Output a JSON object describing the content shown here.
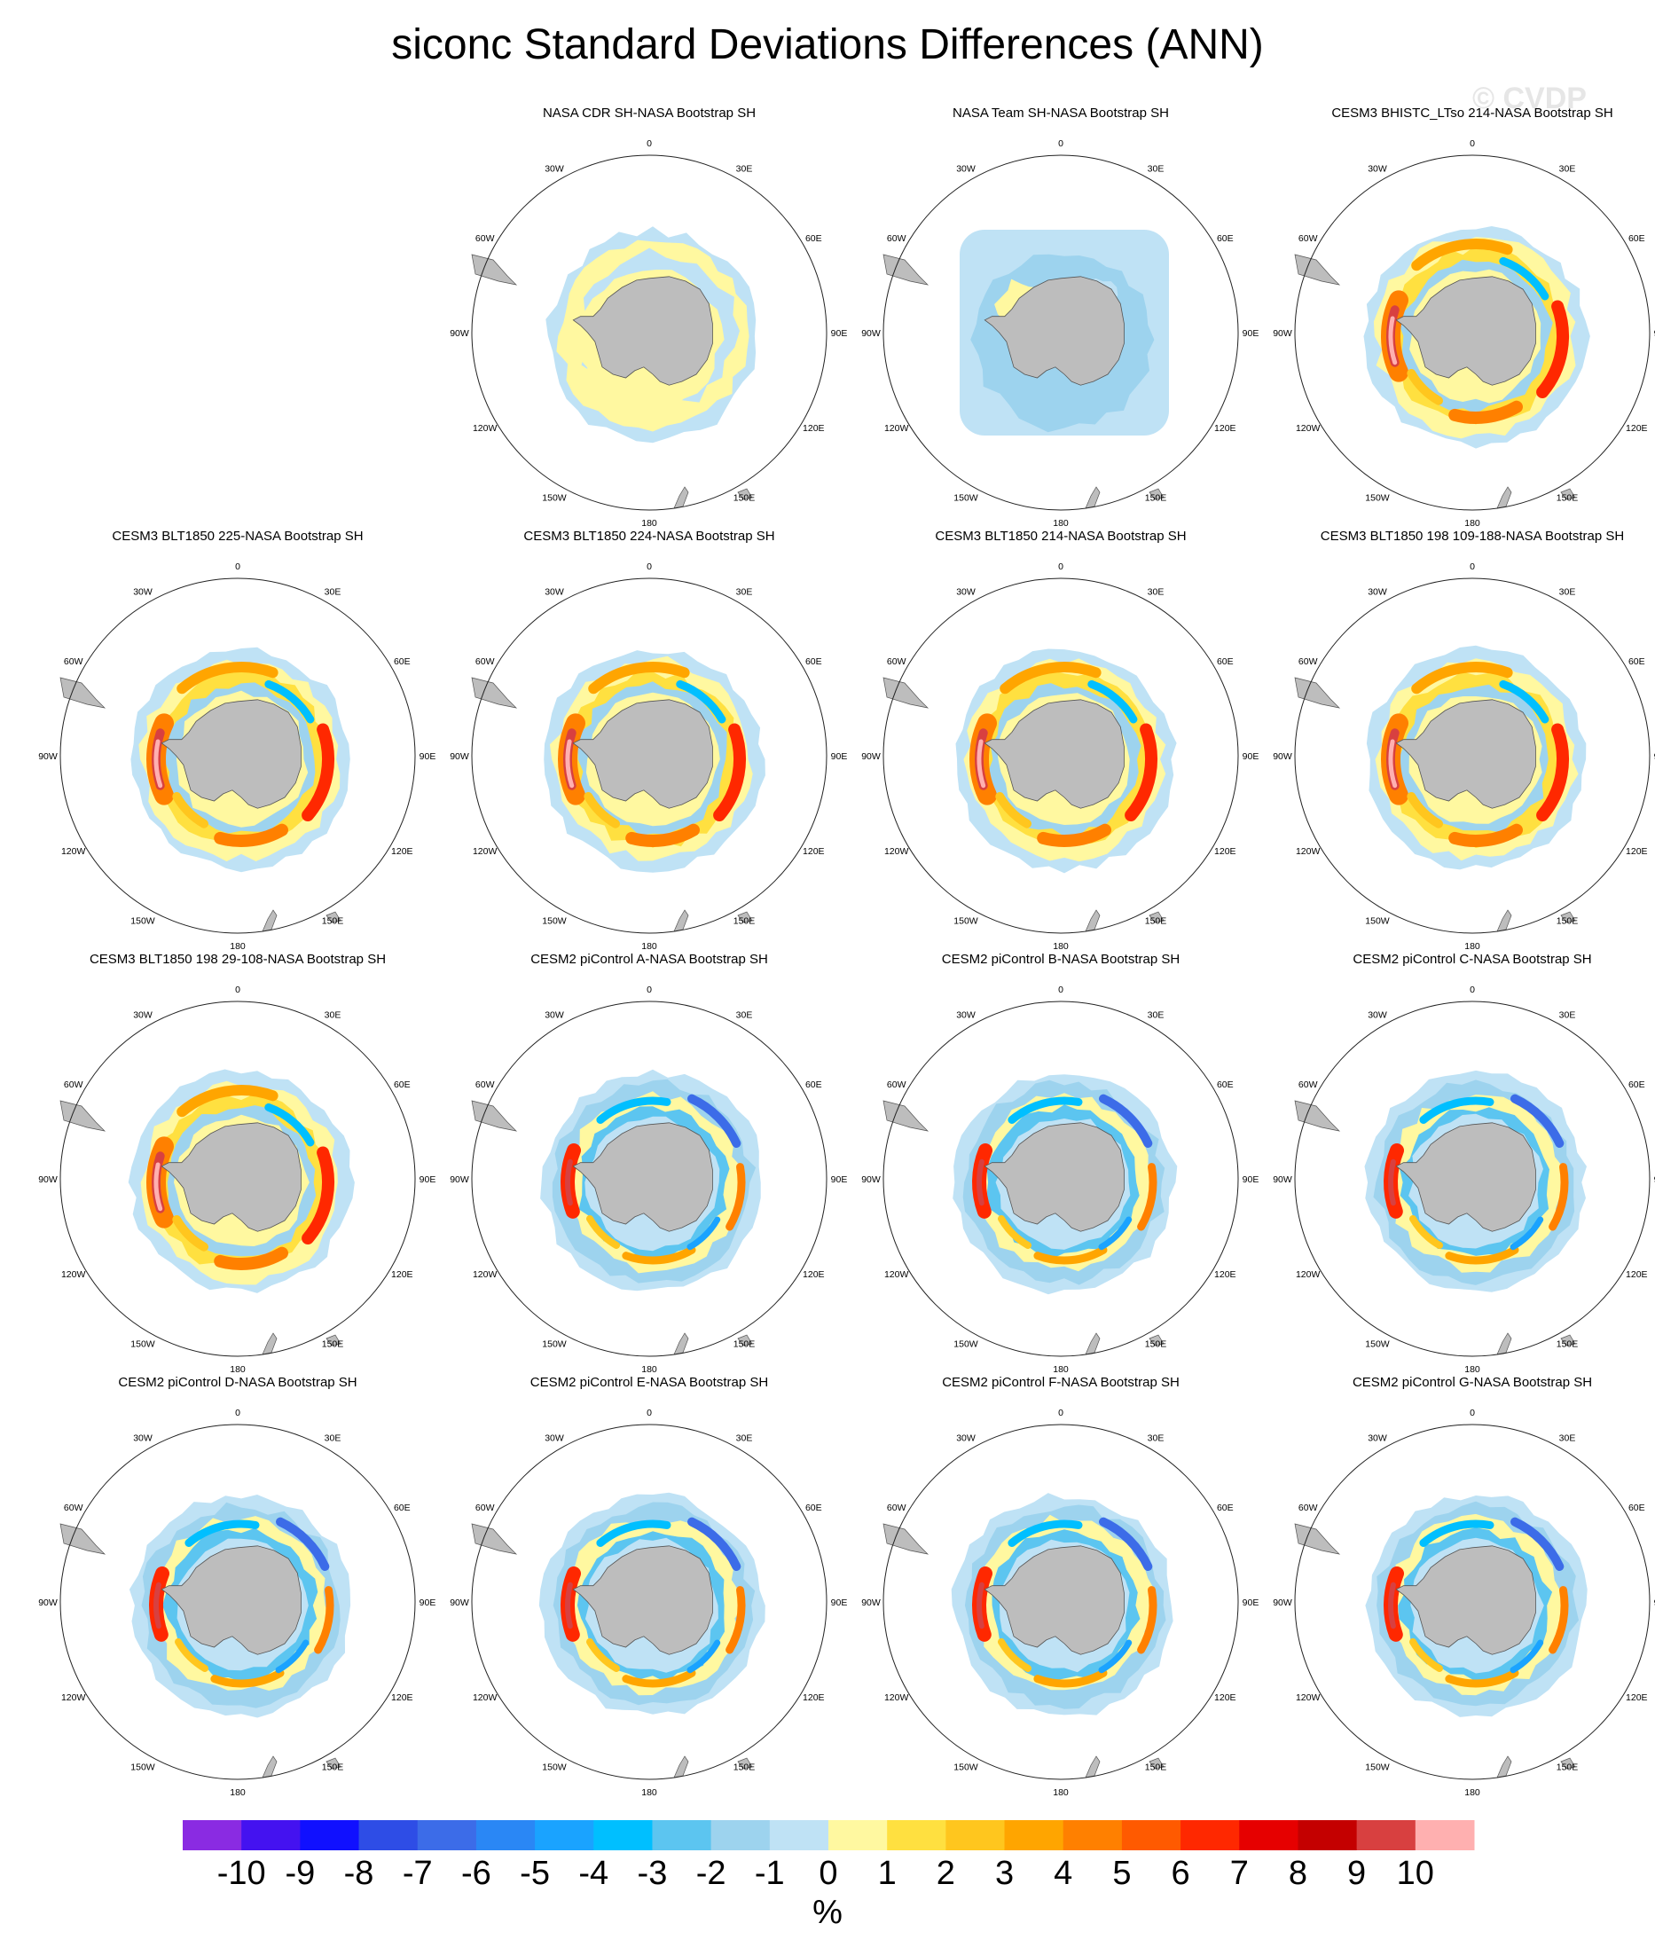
{
  "title": "siconc Standard Deviations Differences (ANN)",
  "watermark": "© CVDP",
  "lon_labels": [
    "0",
    "30E",
    "60E",
    "90E",
    "120E",
    "150E",
    "180",
    "150W",
    "120W",
    "90W",
    "60W",
    "30W"
  ],
  "chart_data": {
    "type": "heatmap",
    "projection": "south polar stereographic",
    "variable": "siconc",
    "statistic": "standard deviation difference",
    "season": "ANN",
    "units": "%",
    "colorbar": {
      "levels": [
        -10,
        -9,
        -8,
        -7,
        -6,
        -5,
        -4,
        -3,
        -2,
        -1,
        0,
        1,
        2,
        3,
        4,
        5,
        6,
        7,
        8,
        9,
        10
      ],
      "tick_labels": [
        "-10",
        "-9",
        "-8",
        "-7",
        "-6",
        "-5",
        "-4",
        "-3",
        "-2",
        "-1",
        "0",
        "1",
        "2",
        "3",
        "4",
        "5",
        "6",
        "7",
        "8",
        "9",
        "10"
      ],
      "colors": [
        "#8a2be2",
        "#4412f0",
        "#1010ff",
        "#2e4de6",
        "#3c6ce8",
        "#2a87f5",
        "#1aa3ff",
        "#00bfff",
        "#5cc5f0",
        "#9dd3ee",
        "#bfe2f5",
        "#fff8a0",
        "#ffe040",
        "#ffc61e",
        "#ffa500",
        "#ff8000",
        "#ff5a00",
        "#ff2800",
        "#e60000",
        "#c40000",
        "#d84040",
        "#ffb0b0"
      ],
      "unit_label": "%"
    },
    "panels": [
      {
        "title": "NASA CDR SH-NASA Bootstrap SH",
        "pattern": "obs1"
      },
      {
        "title": "NASA Team SH-NASA Bootstrap SH",
        "pattern": "obs2"
      },
      {
        "title": "CESM3 BHISTC_LTso 214-NASA Bootstrap SH",
        "pattern": "warm"
      },
      {
        "title": "CESM3 BLT1850 225-NASA Bootstrap SH",
        "pattern": "warm"
      },
      {
        "title": "CESM3 BLT1850 224-NASA Bootstrap SH",
        "pattern": "warm"
      },
      {
        "title": "CESM3 BLT1850 214-NASA Bootstrap SH",
        "pattern": "warm"
      },
      {
        "title": "CESM3 BLT1850 198 109-188-NASA Bootstrap SH",
        "pattern": "warm"
      },
      {
        "title": "CESM3 BLT1850 198 29-108-NASA Bootstrap SH",
        "pattern": "warm"
      },
      {
        "title": "CESM2 piControl A-NASA Bootstrap SH",
        "pattern": "mixed"
      },
      {
        "title": "CESM2 piControl B-NASA Bootstrap SH",
        "pattern": "mixed"
      },
      {
        "title": "CESM2 piControl C-NASA Bootstrap SH",
        "pattern": "mixed"
      },
      {
        "title": "CESM2 piControl D-NASA Bootstrap SH",
        "pattern": "mixed"
      },
      {
        "title": "CESM2 piControl E-NASA Bootstrap SH",
        "pattern": "mixed"
      },
      {
        "title": "CESM2 piControl F-NASA Bootstrap SH",
        "pattern": "mixed"
      },
      {
        "title": "CESM2 piControl G-NASA Bootstrap SH",
        "pattern": "mixed"
      }
    ]
  }
}
